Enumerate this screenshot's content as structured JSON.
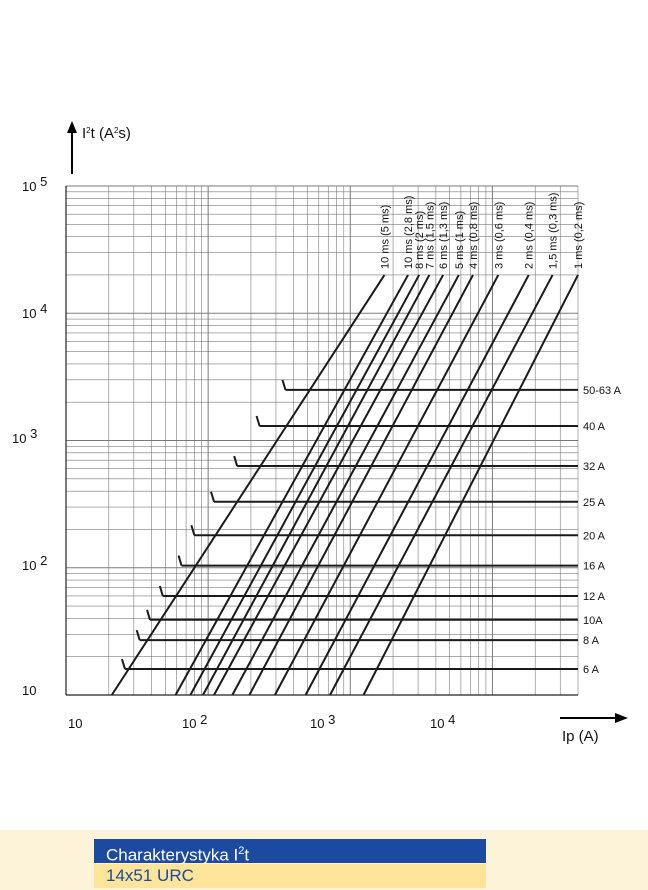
{
  "chart_data": {
    "type": "line",
    "title": "",
    "xlabel": "Ip (A)",
    "ylabel_prefix": "I",
    "ylabel_sup": "2",
    "ylabel_rest": "t (A",
    "ylabel_sup2": "2",
    "ylabel_end": "s)",
    "x_scale": "log",
    "y_scale": "log",
    "xlim": [
      10,
      40000
    ],
    "ylim": [
      10,
      100000
    ],
    "grid": true,
    "x_ticks": [
      {
        "base": "10",
        "exp": ""
      },
      {
        "base": "10",
        "exp": "2"
      },
      {
        "base": "10",
        "exp": "3"
      },
      {
        "base": "10",
        "exp": "4"
      }
    ],
    "y_ticks": [
      {
        "base": "10",
        "exp": ""
      },
      {
        "base": "10",
        "exp": "2"
      },
      {
        "base": "10",
        "exp": "3"
      },
      {
        "base": "10",
        "exp": "4"
      },
      {
        "base": "10",
        "exp": "5"
      }
    ],
    "diagonal_series": [
      {
        "name": "10 ms (5 ms)",
        "ip_at_ymin": 21,
        "ip_at_ymax": 1740
      },
      {
        "name": "10 ms (2,8 ms)",
        "ip_at_ymin": 59,
        "ip_at_ymax": 2550
      },
      {
        "name": "8 ms (2 ms)",
        "ip_at_ymin": 75,
        "ip_at_ymax": 3050
      },
      {
        "name": "7 ms (1,5 ms)",
        "ip_at_ymin": 92,
        "ip_at_ymax": 3600
      },
      {
        "name": "6 ms (1,3 ms)",
        "ip_at_ymin": 110,
        "ip_at_ymax": 4500
      },
      {
        "name": "5 ms (1 ms)",
        "ip_at_ymin": 148,
        "ip_at_ymax": 5800
      },
      {
        "name": "4 ms (0,8 ms)",
        "ip_at_ymin": 195,
        "ip_at_ymax": 7300
      },
      {
        "name": "3 ms (0,6 ms)",
        "ip_at_ymin": 295,
        "ip_at_ymax": 11000
      },
      {
        "name": "2 ms (0,4 ms)",
        "ip_at_ymin": 485,
        "ip_at_ymax": 18000
      },
      {
        "name": "1,5 ms (0,3 ms)",
        "ip_at_ymin": 720,
        "ip_at_ymax": 26500
      },
      {
        "name": "1 ms (0,2 ms)",
        "ip_at_ymin": 1240,
        "ip_at_ymax": 40000
      }
    ],
    "rating_series": [
      {
        "name": "50-63 A",
        "i2t": 2500,
        "ip_start": 350
      },
      {
        "name": "40 A",
        "i2t": 1300,
        "ip_start": 230
      },
      {
        "name": "32 A",
        "i2t": 630,
        "ip_start": 160
      },
      {
        "name": "25 A",
        "i2t": 330,
        "ip_start": 110
      },
      {
        "name": "20 A",
        "i2t": 180,
        "ip_start": 80
      },
      {
        "name": "16 A",
        "i2t": 104,
        "ip_start": 65
      },
      {
        "name": "12 A",
        "i2t": 60,
        "ip_start": 48
      },
      {
        "name": "10A",
        "i2t": 39,
        "ip_start": 39
      },
      {
        "name": "8 A",
        "i2t": 27,
        "ip_start": 33
      },
      {
        "name": "6 A",
        "i2t": 16,
        "ip_start": 26
      }
    ],
    "line_color": "#1a1a1a",
    "grid_color": "#7a7a7a"
  },
  "caption": {
    "title_main": "Charakterystyka I",
    "title_sup": "2",
    "title_end": "t",
    "subtitle": "14x51 URC",
    "title_bg": "#1b4aa0",
    "subtitle_bg": "#ffe59a"
  }
}
